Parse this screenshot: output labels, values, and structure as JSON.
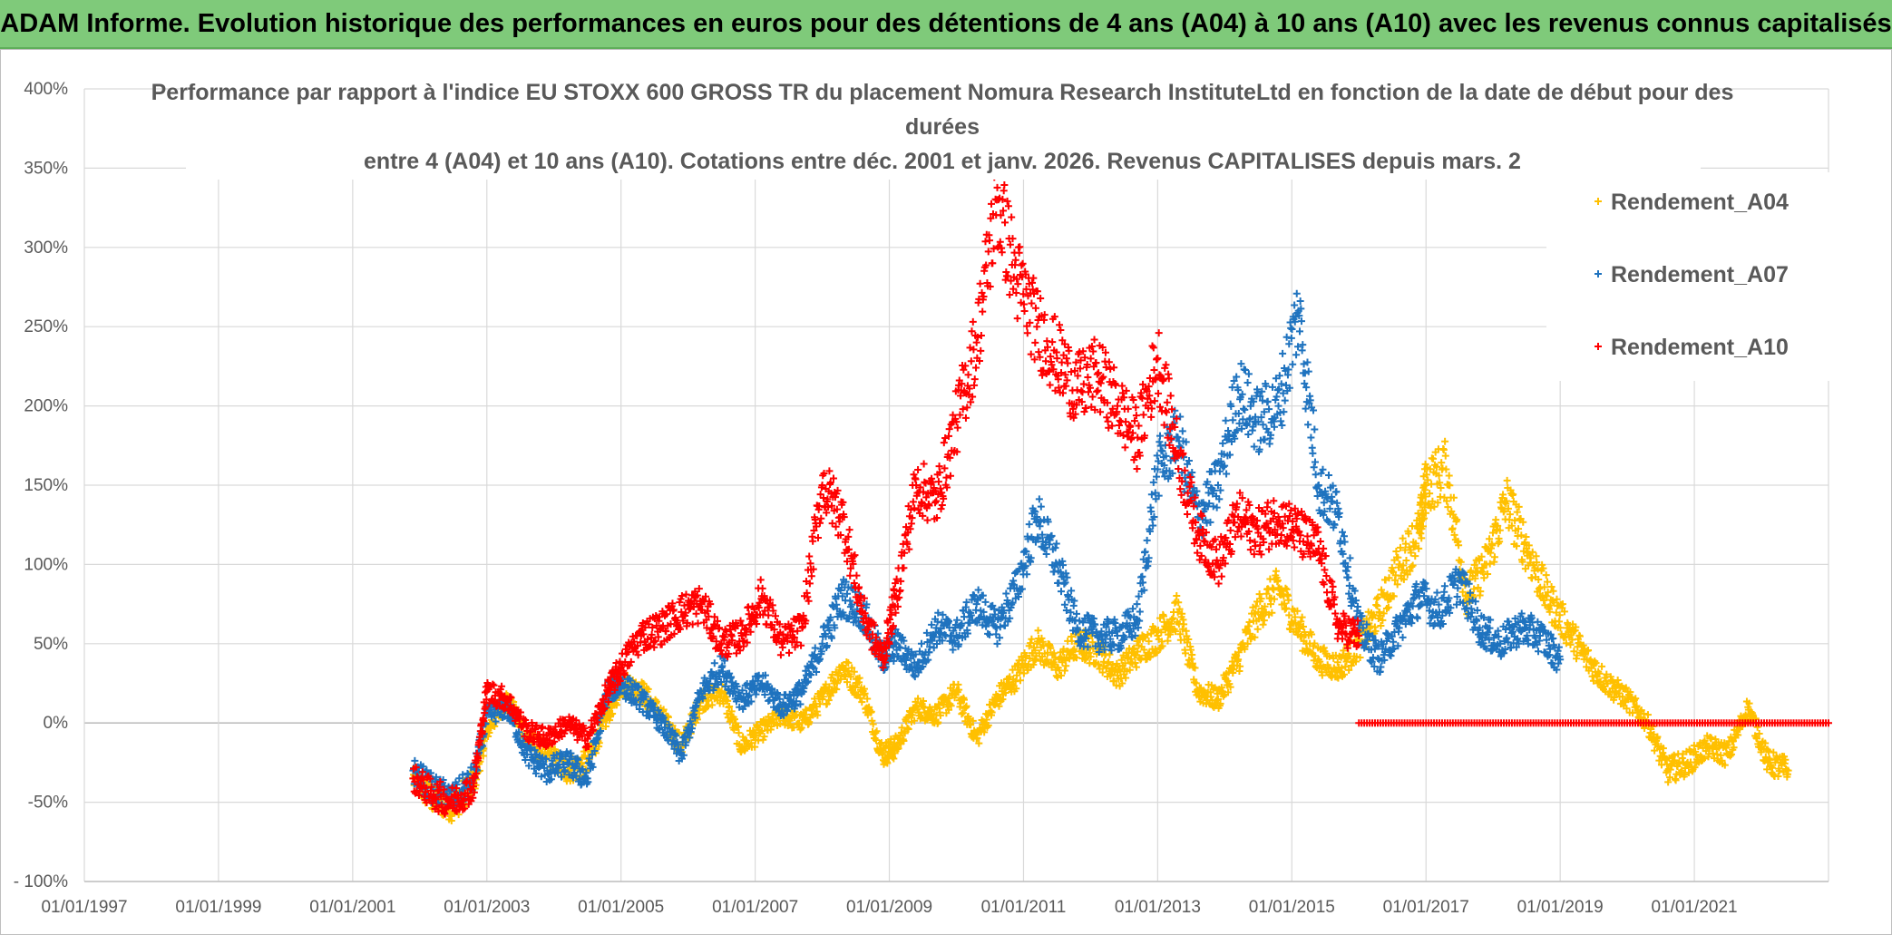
{
  "banner": {
    "title": "ADAM Informe. Evolution historique des performances en euros pour des détentions de 4 ans (A04) à 10 ans (A10) avec les revenus connus capitalisés"
  },
  "chart_data": {
    "type": "scatter",
    "title_lines": [
      "Performance par rapport à l'indice EU STOXX 600 GROSS TR  du placement Nomura Research InstituteLtd en fonction de la date de début pour des",
      "durées",
      "entre 4 (A04) et 10 ans (A10). Cotations entre déc. 2001 et janv. 2026. Revenus CAPITALISES depuis mars. 2"
    ],
    "xlabel": "",
    "ylabel": "",
    "xlim": [
      1997.0,
      2023.0
    ],
    "ylim": [
      -100,
      400
    ],
    "x_ticks": [
      1997,
      1999,
      2001,
      2003,
      2005,
      2007,
      2009,
      2011,
      2013,
      2015,
      2017,
      2019,
      2021
    ],
    "x_tick_labels": [
      "01/01/1997",
      "01/01/1999",
      "01/01/2001",
      "01/01/2003",
      "01/01/2005",
      "01/01/2007",
      "01/01/2009",
      "01/01/2011",
      "01/01/2013",
      "01/01/2015",
      "01/01/2017",
      "01/01/2019",
      "01/01/2021"
    ],
    "y_ticks": [
      -100,
      -50,
      0,
      50,
      100,
      150,
      200,
      250,
      300,
      350,
      400
    ],
    "y_tick_labels": [
      "- 100%",
      "-50%",
      "0%",
      "50%",
      "100%",
      "150%",
      "200%",
      "250%",
      "300%",
      "350%",
      "400%"
    ],
    "grid": true,
    "legend_position": "right",
    "marker": "+",
    "series": [
      {
        "name": "Rendement_A04",
        "color": "#ffc000",
        "x": [
          2001.9,
          2002.2,
          2002.5,
          2002.8,
          2003.0,
          2003.3,
          2003.6,
          2003.9,
          2004.2,
          2004.5,
          2004.8,
          2005.0,
          2005.3,
          2005.6,
          2005.9,
          2006.2,
          2006.5,
          2006.8,
          2007.1,
          2007.4,
          2007.7,
          2008.0,
          2008.3,
          2008.6,
          2008.9,
          2009.1,
          2009.4,
          2009.7,
          2010.0,
          2010.3,
          2010.6,
          2010.9,
          2011.2,
          2011.5,
          2011.8,
          2012.1,
          2012.4,
          2012.7,
          2013.0,
          2013.3,
          2013.6,
          2013.9,
          2014.2,
          2014.5,
          2014.8,
          2015.1,
          2015.4,
          2015.7,
          2016.0,
          2016.3,
          2016.6,
          2016.9,
          2017.0,
          2017.3,
          2017.6,
          2017.9,
          2018.2,
          2018.5,
          2018.8,
          2019.1,
          2019.4,
          2019.7,
          2020.0,
          2020.3,
          2020.6,
          2020.9,
          2021.2,
          2021.5,
          2021.8,
          2022.1,
          2022.4
        ],
        "y": [
          -35,
          -48,
          -52,
          -38,
          -5,
          15,
          -10,
          -20,
          -30,
          -25,
          5,
          25,
          20,
          5,
          -15,
          15,
          20,
          -15,
          -5,
          5,
          0,
          15,
          35,
          20,
          -20,
          -15,
          10,
          5,
          20,
          -10,
          15,
          30,
          50,
          35,
          50,
          45,
          30,
          45,
          55,
          70,
          20,
          15,
          40,
          70,
          85,
          60,
          40,
          35,
          50,
          70,
          100,
          120,
          150,
          160,
          80,
          100,
          140,
          110,
          80,
          60,
          40,
          25,
          15,
          0,
          -30,
          -25,
          -15,
          -20,
          10,
          -25,
          -30
        ]
      },
      {
        "name": "Rendement_A07",
        "color": "#1f73bf",
        "x": [
          2001.9,
          2002.2,
          2002.5,
          2002.8,
          2003.0,
          2003.3,
          2003.6,
          2003.9,
          2004.2,
          2004.5,
          2004.8,
          2005.0,
          2005.3,
          2005.6,
          2005.9,
          2006.2,
          2006.5,
          2006.8,
          2007.1,
          2007.4,
          2007.7,
          2008.0,
          2008.3,
          2008.6,
          2008.9,
          2009.1,
          2009.4,
          2009.7,
          2010.0,
          2010.3,
          2010.6,
          2010.9,
          2011.2,
          2011.5,
          2011.8,
          2012.1,
          2012.4,
          2012.7,
          2013.0,
          2013.3,
          2013.6,
          2013.9,
          2014.2,
          2014.5,
          2014.8,
          2015.1,
          2015.4,
          2015.7,
          2016.0,
          2016.3,
          2016.6,
          2016.9,
          2017.2,
          2017.5,
          2017.8,
          2018.1,
          2018.4,
          2018.7,
          2019.0
        ],
        "y": [
          -30,
          -42,
          -48,
          -35,
          5,
          10,
          -20,
          -30,
          -25,
          -35,
          20,
          25,
          15,
          0,
          -20,
          20,
          35,
          15,
          25,
          10,
          20,
          50,
          80,
          70,
          40,
          50,
          35,
          60,
          55,
          75,
          60,
          85,
          130,
          100,
          60,
          55,
          55,
          65,
          160,
          180,
          130,
          150,
          210,
          190,
          200,
          260,
          150,
          130,
          60,
          40,
          60,
          80,
          70,
          90,
          60,
          50,
          60,
          55,
          40
        ]
      },
      {
        "name": "Rendement_A10",
        "color": "#ff0000",
        "x": [
          2001.9,
          2002.2,
          2002.5,
          2002.8,
          2003.0,
          2003.3,
          2003.6,
          2003.9,
          2004.2,
          2004.5,
          2004.8,
          2005.0,
          2005.3,
          2005.6,
          2005.9,
          2006.2,
          2006.5,
          2006.8,
          2007.1,
          2007.4,
          2007.7,
          2008.0,
          2008.3,
          2008.6,
          2008.9,
          2009.1,
          2009.4,
          2009.7,
          2010.0,
          2010.3,
          2010.6,
          2010.9,
          2011.2,
          2011.5,
          2011.8,
          2012.1,
          2012.4,
          2012.7,
          2013.0,
          2013.3,
          2013.6,
          2013.9,
          2014.2,
          2014.5,
          2014.8,
          2015.1,
          2015.4,
          2015.7,
          2016.0
        ],
        "y": [
          -35,
          -45,
          -50,
          -40,
          20,
          15,
          -5,
          -10,
          0,
          -10,
          20,
          35,
          55,
          60,
          70,
          75,
          50,
          55,
          80,
          50,
          60,
          150,
          130,
          70,
          40,
          80,
          150,
          140,
          190,
          240,
          330,
          280,
          250,
          230,
          210,
          220,
          200,
          180,
          230,
          170,
          120,
          100,
          130,
          120,
          130,
          120,
          110,
          60,
          55
        ]
      },
      {
        "name": "Rendement_A10_flat",
        "legend": false,
        "color": "#ff0000",
        "x_range": [
          2016.0,
          2023.0
        ],
        "y_value": 0
      }
    ]
  }
}
